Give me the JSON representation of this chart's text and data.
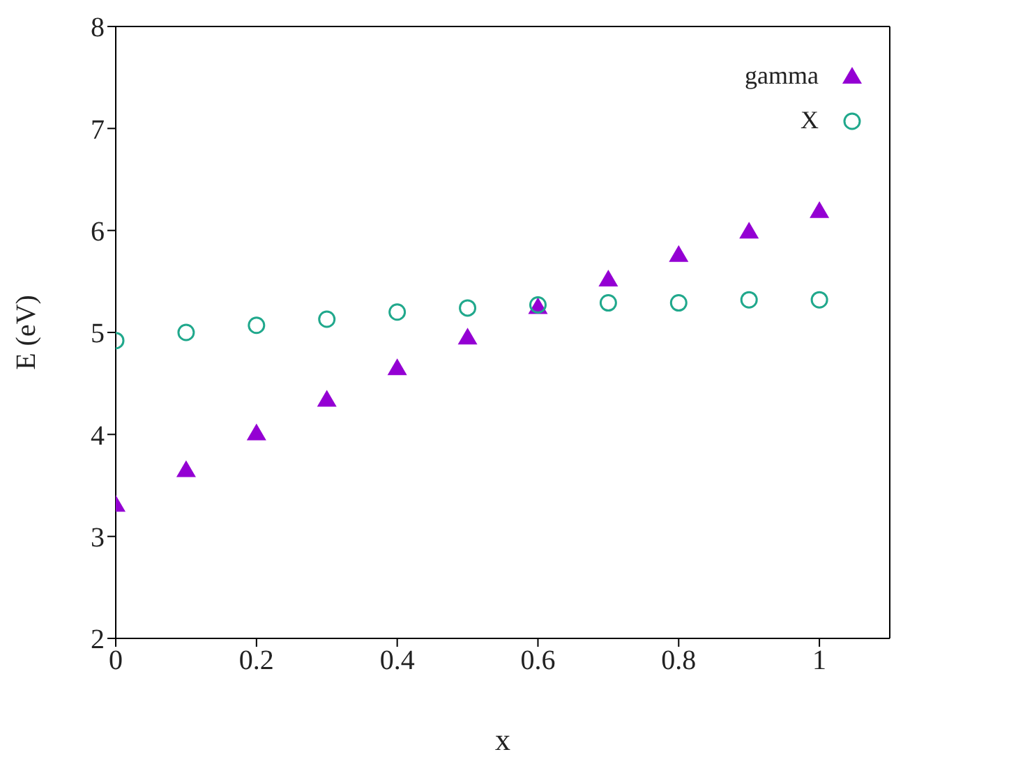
{
  "chart_data": {
    "type": "scatter",
    "xlabel": "x",
    "ylabel": "E (eV)",
    "x": [
      0,
      0.1,
      0.2,
      0.3,
      0.4,
      0.5,
      0.6,
      0.7,
      0.8,
      0.9,
      1
    ],
    "series": [
      {
        "name": "gamma",
        "color": "#9400d3",
        "marker": "triangle",
        "values": [
          3.31,
          3.65,
          4.01,
          4.34,
          4.65,
          4.95,
          5.25,
          5.52,
          5.76,
          5.99,
          6.19
        ]
      },
      {
        "name": "X",
        "color": "#20a88c",
        "marker": "circle",
        "values": [
          4.92,
          5.0,
          5.07,
          5.13,
          5.2,
          5.24,
          5.27,
          5.29,
          5.29,
          5.32,
          5.32
        ]
      }
    ],
    "xlim": [
      0,
      1.1
    ],
    "xticks": [
      0,
      0.2,
      0.4,
      0.6,
      0.8,
      1
    ],
    "ylim": [
      2,
      8
    ],
    "yticks": [
      2,
      3,
      4,
      5,
      6,
      7,
      8
    ],
    "grid": false,
    "legend": "top right"
  }
}
